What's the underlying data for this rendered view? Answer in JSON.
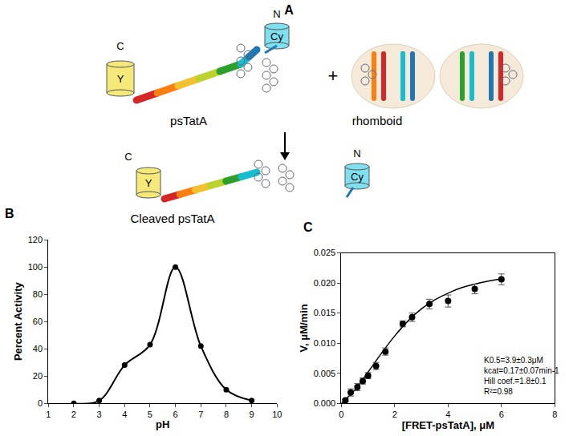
{
  "diagram": {
    "panel_label": "A",
    "substrate": {
      "name": "psTatA",
      "n_term": "N",
      "c_term": "C",
      "n_tag": "Cy",
      "c_tag": "Y"
    },
    "plus": "+",
    "enzyme": {
      "name": "rhomboid"
    },
    "product": {
      "name": "Cleaved psTatA",
      "n_term": "N",
      "c_term": "C",
      "n_tag": "Cy",
      "c_tag": "Y"
    }
  },
  "chart_data": [
    {
      "panel_label": "B",
      "type": "line",
      "x": [
        2,
        3,
        4,
        5,
        6,
        7,
        8,
        9
      ],
      "values": [
        0,
        2,
        28,
        43,
        100,
        42,
        10,
        2
      ],
      "xlim": [
        1,
        10
      ],
      "xticks": [
        1,
        2,
        3,
        4,
        5,
        6,
        7,
        8,
        9,
        10
      ],
      "ylim": [
        0,
        120
      ],
      "yticks": [
        0,
        20,
        40,
        60,
        80,
        100,
        120
      ],
      "x_label": "pH",
      "y_label": "Percent Activity",
      "color": "#000000",
      "marker": "circle",
      "line_style": "smooth",
      "grid": false
    },
    {
      "panel_label": "C",
      "type": "scatter",
      "x": [
        0.15,
        0.35,
        0.6,
        0.8,
        1.0,
        1.3,
        1.65,
        2.3,
        2.65,
        3.3,
        4.0,
        5.0,
        6.0
      ],
      "values": [
        0.0005,
        0.0018,
        0.0027,
        0.0037,
        0.0046,
        0.0062,
        0.0086,
        0.0132,
        0.0143,
        0.0165,
        0.017,
        0.019,
        0.0206
      ],
      "error": [
        0.0002,
        0.0006,
        0.0006,
        0.0005,
        0.0005,
        0.0006,
        0.0006,
        0.0005,
        0.0007,
        0.0008,
        0.001,
        0.0008,
        0.0009
      ],
      "fit": {
        "x": [
          0,
          0.5,
          1,
          1.5,
          2,
          2.5,
          3,
          3.5,
          4,
          4.5,
          5,
          5.5,
          6
        ],
        "values": [
          0,
          0.0022,
          0.0052,
          0.0083,
          0.0112,
          0.0137,
          0.0157,
          0.0172,
          0.0183,
          0.0192,
          0.0198,
          0.0203,
          0.0207
        ]
      },
      "xlim": [
        0,
        8
      ],
      "xticks": [
        0,
        2,
        4,
        6,
        8
      ],
      "ylim": [
        0,
        0.025
      ],
      "yticks": [
        {
          "value": 0,
          "label": "0.000"
        },
        {
          "value": 0.005,
          "label": "0.005"
        },
        {
          "value": 0.01,
          "label": "0.010"
        },
        {
          "value": 0.015,
          "label": "0.015"
        },
        {
          "value": 0.02,
          "label": "0.020"
        },
        {
          "value": 0.025,
          "label": "0.025"
        }
      ],
      "x_label": "[FRET-psTatA], μM",
      "y_label": "V, μM/min",
      "annotations": [
        "K0.5=3.9±0.3μM",
        "kcat=0.17±0.07min-1",
        "Hill coef.=1.8±0.1",
        "R²=0.98"
      ],
      "color": "#000000",
      "marker": "circle",
      "line_style": "solid",
      "grid": false
    }
  ]
}
